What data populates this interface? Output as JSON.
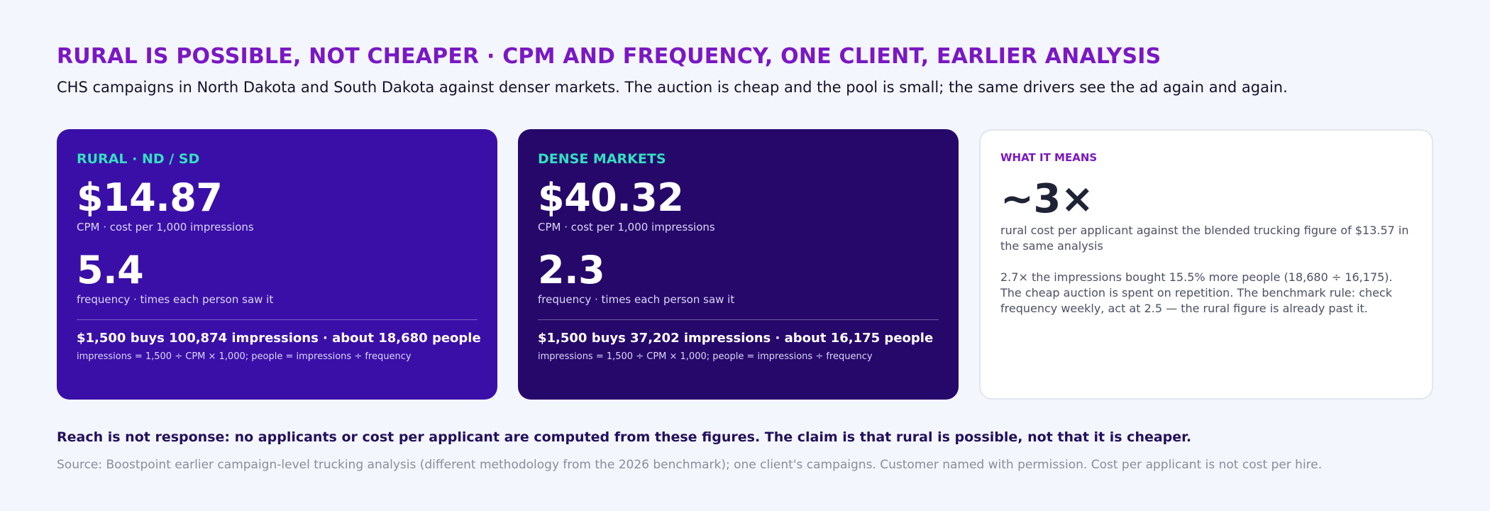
{
  "header": {
    "title": "RURAL IS POSSIBLE, NOT CHEAPER · CPM AND FREQUENCY, ONE CLIENT, EARLIER ANALYSIS",
    "subtitle": "CHS campaigns in North Dakota and South Dakota against denser markets. The auction is cheap and the pool is small; the same drivers see the ad again and again."
  },
  "cards": {
    "rural": {
      "label": "RURAL · ND / SD",
      "cpm": "$14.87",
      "cpm_caption": "CPM · cost per 1,000 impressions",
      "frequency": "5.4",
      "frequency_caption": "frequency · times each person saw it",
      "buys": "$1,500 buys 100,874 impressions · about 18,680 people",
      "formula": "impressions = 1,500 ÷ CPM × 1,000; people = impressions ÷ frequency"
    },
    "dense": {
      "label": "DENSE MARKETS",
      "cpm": "$40.32",
      "cpm_caption": "CPM · cost per 1,000 impressions",
      "frequency": "2.3",
      "frequency_caption": "frequency · times each person saw it",
      "buys": "$1,500 buys 37,202 impressions · about 16,175 people",
      "formula": "impressions = 1,500 ÷ CPM × 1,000; people = impressions ÷ frequency"
    },
    "means": {
      "label": "WHAT IT MEANS",
      "value": "~3×",
      "caption": "rural cost per applicant against the blended trucking figure of $13.57 in the same analysis",
      "body": "2.7× the impressions bought 15.5% more people (18,680 ÷ 16,175). The cheap auction is spent on repetition. The benchmark rule: check frequency weekly, act at 2.5 — the rural figure is already past it."
    }
  },
  "footer": {
    "reach_note": "Reach is not response: no applicants or cost per applicant are computed from these figures. The claim is that rural is possible, not that it is cheaper.",
    "source": "Source: Boostpoint earlier campaign-level trucking analysis (different methodology from the 2026 benchmark); one client's campaigns. Customer named with permission. Cost per applicant is not cost per hire."
  },
  "colors": {
    "title": "#7a18c4",
    "rural_card": "#3a0fa8",
    "dense_card": "#26086b",
    "accent_teal": "#33e0c0",
    "background": "#f4f6fd"
  }
}
